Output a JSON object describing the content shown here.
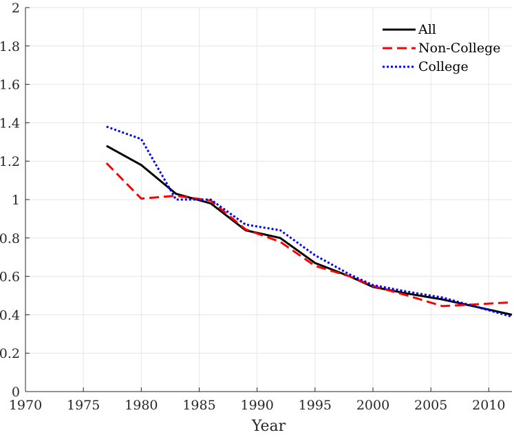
{
  "chart_data": {
    "type": "line",
    "title": "",
    "xlabel": "Year",
    "ylabel": "",
    "xlim": [
      1970,
      2012
    ],
    "ylim": [
      0,
      2
    ],
    "grid": true,
    "legend_position": "top-right",
    "x_ticks": [
      1970,
      1975,
      1980,
      1985,
      1990,
      1995,
      2000,
      2005,
      2010
    ],
    "y_ticks": [
      0,
      0.2,
      0.4,
      0.6,
      0.8,
      1,
      1.2,
      1.4,
      1.6,
      1.8,
      2
    ],
    "x_tick_labels": [
      "1970",
      "1975",
      "1980",
      "1985",
      "1990",
      "1995",
      "2000",
      "2005",
      "2010"
    ],
    "y_tick_labels": [
      "0",
      "0.2",
      "0.4",
      "0.6",
      "0.8",
      "1",
      "1.2",
      "1.4",
      "1.6",
      "1.8",
      "2"
    ],
    "series": [
      {
        "name": "All",
        "color": "#000000",
        "style": "solid",
        "x": [
          1977,
          1980,
          1983,
          1986,
          1989,
          1992,
          1995,
          1998,
          2000,
          2003,
          2006,
          2009,
          2012
        ],
        "values": [
          1.28,
          1.18,
          1.03,
          0.98,
          0.84,
          0.8,
          0.67,
          0.6,
          0.545,
          0.51,
          0.48,
          0.44,
          0.4
        ]
      },
      {
        "name": "Non-College",
        "color": "#ff0000",
        "style": "dashed",
        "x": [
          1977,
          1980,
          1983,
          1986,
          1989,
          1992,
          1995,
          1998,
          2000,
          2003,
          2006,
          2009,
          2012
        ],
        "values": [
          1.19,
          1.005,
          1.02,
          0.995,
          0.845,
          0.78,
          0.655,
          0.6,
          0.55,
          0.5,
          0.445,
          0.455,
          0.465
        ]
      },
      {
        "name": "College",
        "color": "#0000ff",
        "style": "dotted",
        "x": [
          1977,
          1980,
          1983,
          1986,
          1989,
          1992,
          1995,
          1998,
          2000,
          2003,
          2006,
          2009,
          2012
        ],
        "values": [
          1.38,
          1.315,
          1.0,
          1.0,
          0.87,
          0.84,
          0.71,
          0.61,
          0.555,
          0.52,
          0.49,
          0.44,
          0.39
        ]
      }
    ]
  }
}
